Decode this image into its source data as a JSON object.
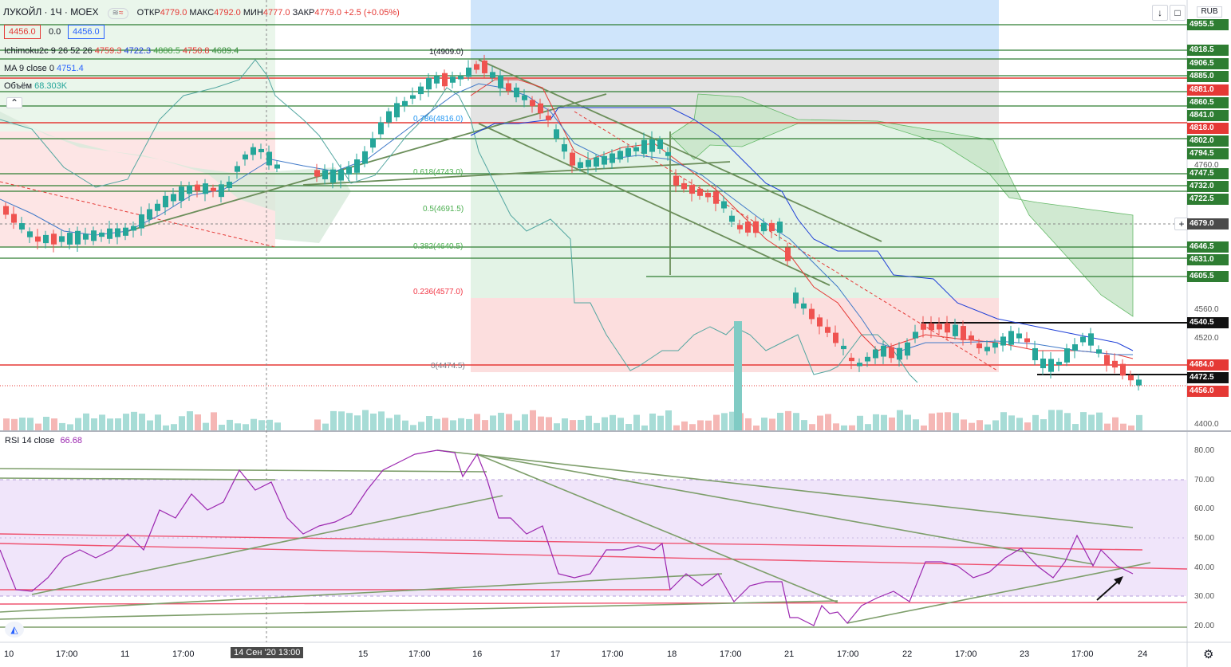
{
  "header": {
    "symbol": "ЛУКОЙЛ · 1Ч · MOEX",
    "open_label": "ОТКР",
    "open_value": "4779.0",
    "high_label": "МАКС",
    "high_value": "4792.0",
    "low_label": "МИН",
    "low_value": "4777.0",
    "close_label": "ЗАКР",
    "close_value": "4779.0",
    "change_value": "+2.5 (+0.05%)",
    "bid": "4456.0",
    "spread": "0.0",
    "ask": "4456.0",
    "currency": "RUB"
  },
  "indicators": {
    "ichimoku_name": "Ichimoku2c 9 26 52 26",
    "ichimoku_values": [
      "4759.3",
      "4722.3",
      "4888.5",
      "4750.8",
      "4689.4"
    ],
    "ichimoku_colors": [
      "#e53935",
      "#1e3fd8",
      "#43a047",
      "#e53935",
      "#388e3c"
    ],
    "ma_name": "MA 9 close 0",
    "ma_value": "4751.4",
    "volume_name": "Объём",
    "volume_value": "68.303K",
    "rsi_name": "RSI 14 close",
    "rsi_value": "66.68"
  },
  "fib_levels": [
    {
      "label": "1(4909.0)",
      "color": "#787b86"
    },
    {
      "label": "0.786(4816.0)",
      "color": "#2196f3"
    },
    {
      "label": "0.618(4743.0)",
      "color": "#4caf50"
    },
    {
      "label": "0.5(4691.5)",
      "color": "#4caf50"
    },
    {
      "label": "0.382(4640.5)",
      "color": "#4caf50"
    },
    {
      "label": "0.236(4577.0)",
      "color": "#f23645"
    },
    {
      "label": "0(4474.5)",
      "color": "#787b86"
    }
  ],
  "price_labels": [
    {
      "text": "4955.5",
      "bg": "#2e7d32"
    },
    {
      "text": "4918.5",
      "bg": "#2e7d32"
    },
    {
      "text": "4906.5",
      "bg": "#2e7d32"
    },
    {
      "text": "4885.0",
      "bg": "#2e7d32"
    },
    {
      "text": "4881.0",
      "bg": "#e53935"
    },
    {
      "text": "4860.5",
      "bg": "#2e7d32"
    },
    {
      "text": "4841.0",
      "bg": "#2e7d32"
    },
    {
      "text": "4818.0",
      "bg": "#e53935"
    },
    {
      "text": "4802.0",
      "bg": "#2e7d32"
    },
    {
      "text": "4794.5",
      "bg": "#2e7d32"
    },
    {
      "text": "4747.5",
      "bg": "#2e7d32"
    },
    {
      "text": "4732.0",
      "bg": "#2e7d32"
    },
    {
      "text": "4722.5",
      "bg": "#2e7d32"
    },
    {
      "text": "4679.0",
      "bg": "#4a4a4a"
    },
    {
      "text": "4646.5",
      "bg": "#2e7d32"
    },
    {
      "text": "4631.0",
      "bg": "#2e7d32"
    },
    {
      "text": "4605.5",
      "bg": "#2e7d32"
    },
    {
      "text": "4540.5",
      "bg": "#111111"
    },
    {
      "text": "4484.0",
      "bg": "#e53935"
    },
    {
      "text": "4472.5",
      "bg": "#111111"
    },
    {
      "text": "4456.0",
      "bg": "#e53935"
    }
  ],
  "price_axis_ticks": [
    "4760.0",
    "4560.0",
    "4520.0",
    "4400.0"
  ],
  "rsi_axis_ticks": [
    "80.00",
    "70.00",
    "60.00",
    "50.00",
    "40.00",
    "30.00",
    "20.00"
  ],
  "time_axis": [
    "10",
    "17:00",
    "11",
    "17:00",
    "15",
    "17:00",
    "16",
    "17",
    "17:00",
    "18",
    "17:00",
    "21",
    "17:00",
    "22",
    "17:00",
    "23",
    "17:00",
    "24"
  ],
  "crosshair_time": "14 Сен '20   13:00",
  "colors": {
    "up": "#26a69a",
    "down": "#ef5350",
    "rsi": "#9c27b0",
    "trend": "#6b8e5a"
  }
}
